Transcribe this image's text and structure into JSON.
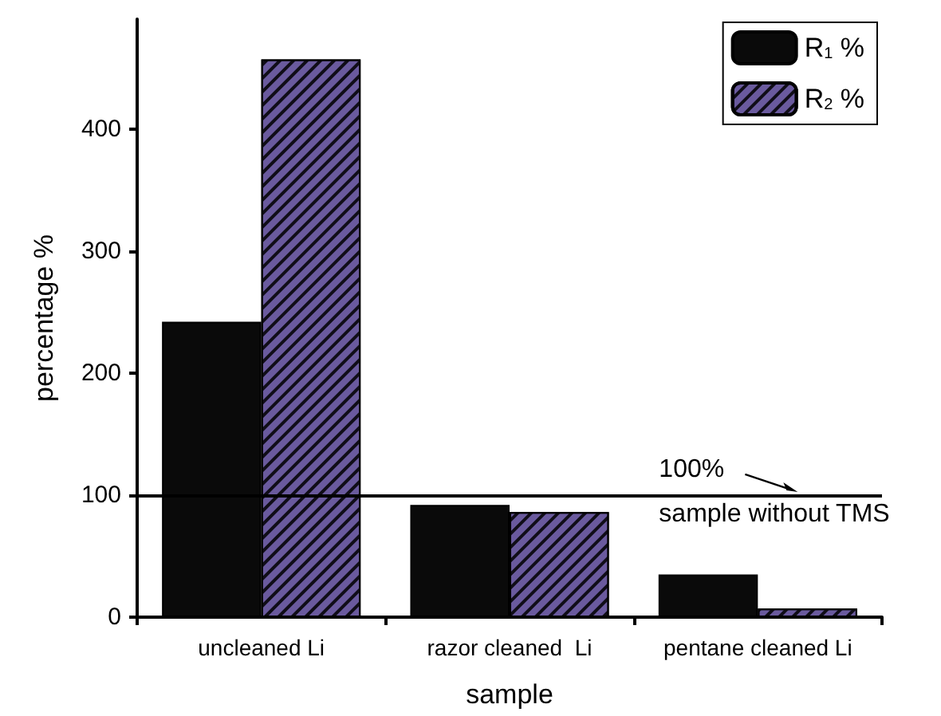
{
  "chart_data": {
    "type": "bar",
    "xlabel": "sample",
    "ylabel": "percentage %",
    "categories": [
      "uncleaned Li",
      "razor cleaned  Li",
      "pentane cleaned Li"
    ],
    "series": [
      {
        "name": "R$_{1}$ %",
        "color": "#0a0a0a",
        "values": [
          242,
          92,
          35
        ]
      },
      {
        "name": "R$_{2}$ %",
        "color": "#6a5a9e",
        "values": [
          457,
          86,
          7
        ]
      }
    ],
    "ylim": [
      0,
      490
    ],
    "yticks": [
      0,
      100,
      200,
      300,
      400
    ],
    "ref_lines": [
      {
        "axis": "y",
        "value": 100,
        "color": "#000000"
      }
    ],
    "annotations": [
      "100%",
      "sample without TMS"
    ],
    "legend": "top right",
    "grid": false
  }
}
